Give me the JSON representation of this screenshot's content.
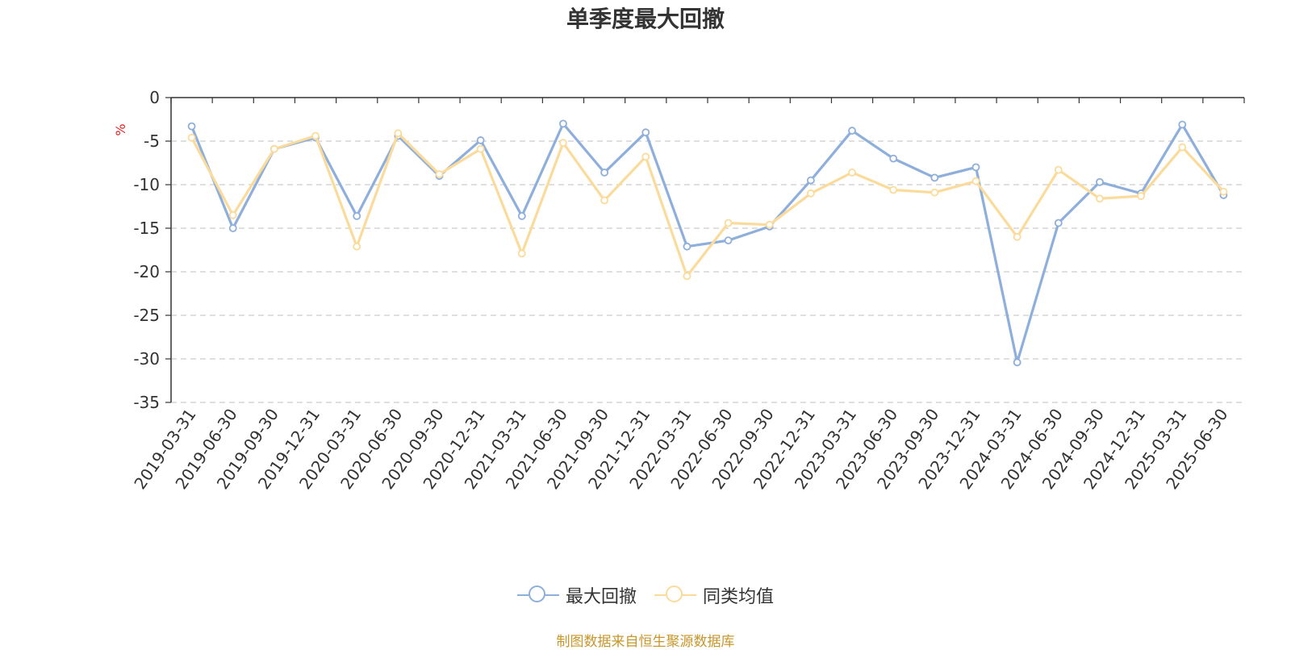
{
  "chart_data": {
    "type": "line",
    "title": "单季度最大回撤",
    "ylabel": "%",
    "ylim": [
      -35,
      0
    ],
    "yticks": [
      0,
      -5,
      -10,
      -15,
      -20,
      -25,
      -30,
      -35
    ],
    "grid": true,
    "legend_position": "bottom",
    "categories": [
      "2019-03-31",
      "2019-06-30",
      "2019-09-30",
      "2019-12-31",
      "2020-03-31",
      "2020-06-30",
      "2020-09-30",
      "2020-12-31",
      "2021-03-31",
      "2021-06-30",
      "2021-09-30",
      "2021-12-31",
      "2022-03-31",
      "2022-06-30",
      "2022-09-30",
      "2022-12-31",
      "2023-03-31",
      "2023-06-30",
      "2023-09-30",
      "2023-12-31",
      "2024-03-31",
      "2024-06-30",
      "2024-09-30",
      "2024-12-31",
      "2025-03-31",
      "2025-06-30"
    ],
    "series": [
      {
        "name": "最大回撤",
        "color": "#8eaedb",
        "values": [
          -3.3,
          -15.0,
          -5.9,
          -4.6,
          -13.6,
          -4.4,
          -9.0,
          -4.9,
          -13.6,
          -3.0,
          -8.6,
          -4.0,
          -17.1,
          -16.4,
          -14.8,
          -9.5,
          -3.8,
          -7.0,
          -9.2,
          -8.0,
          -30.4,
          -14.4,
          -9.7,
          -11.0,
          -3.1,
          -11.2
        ]
      },
      {
        "name": "同类均值",
        "color": "#fbdb9b",
        "values": [
          -4.6,
          -13.5,
          -5.9,
          -4.4,
          -17.1,
          -4.1,
          -8.8,
          -5.9,
          -17.9,
          -5.2,
          -11.8,
          -6.8,
          -20.5,
          -14.4,
          -14.6,
          -11.0,
          -8.6,
          -10.6,
          -10.9,
          -9.6,
          -16.0,
          -8.3,
          -11.6,
          -11.3,
          -5.7,
          -10.8
        ]
      }
    ]
  },
  "source_note": "制图数据来自恒生聚源数据库"
}
